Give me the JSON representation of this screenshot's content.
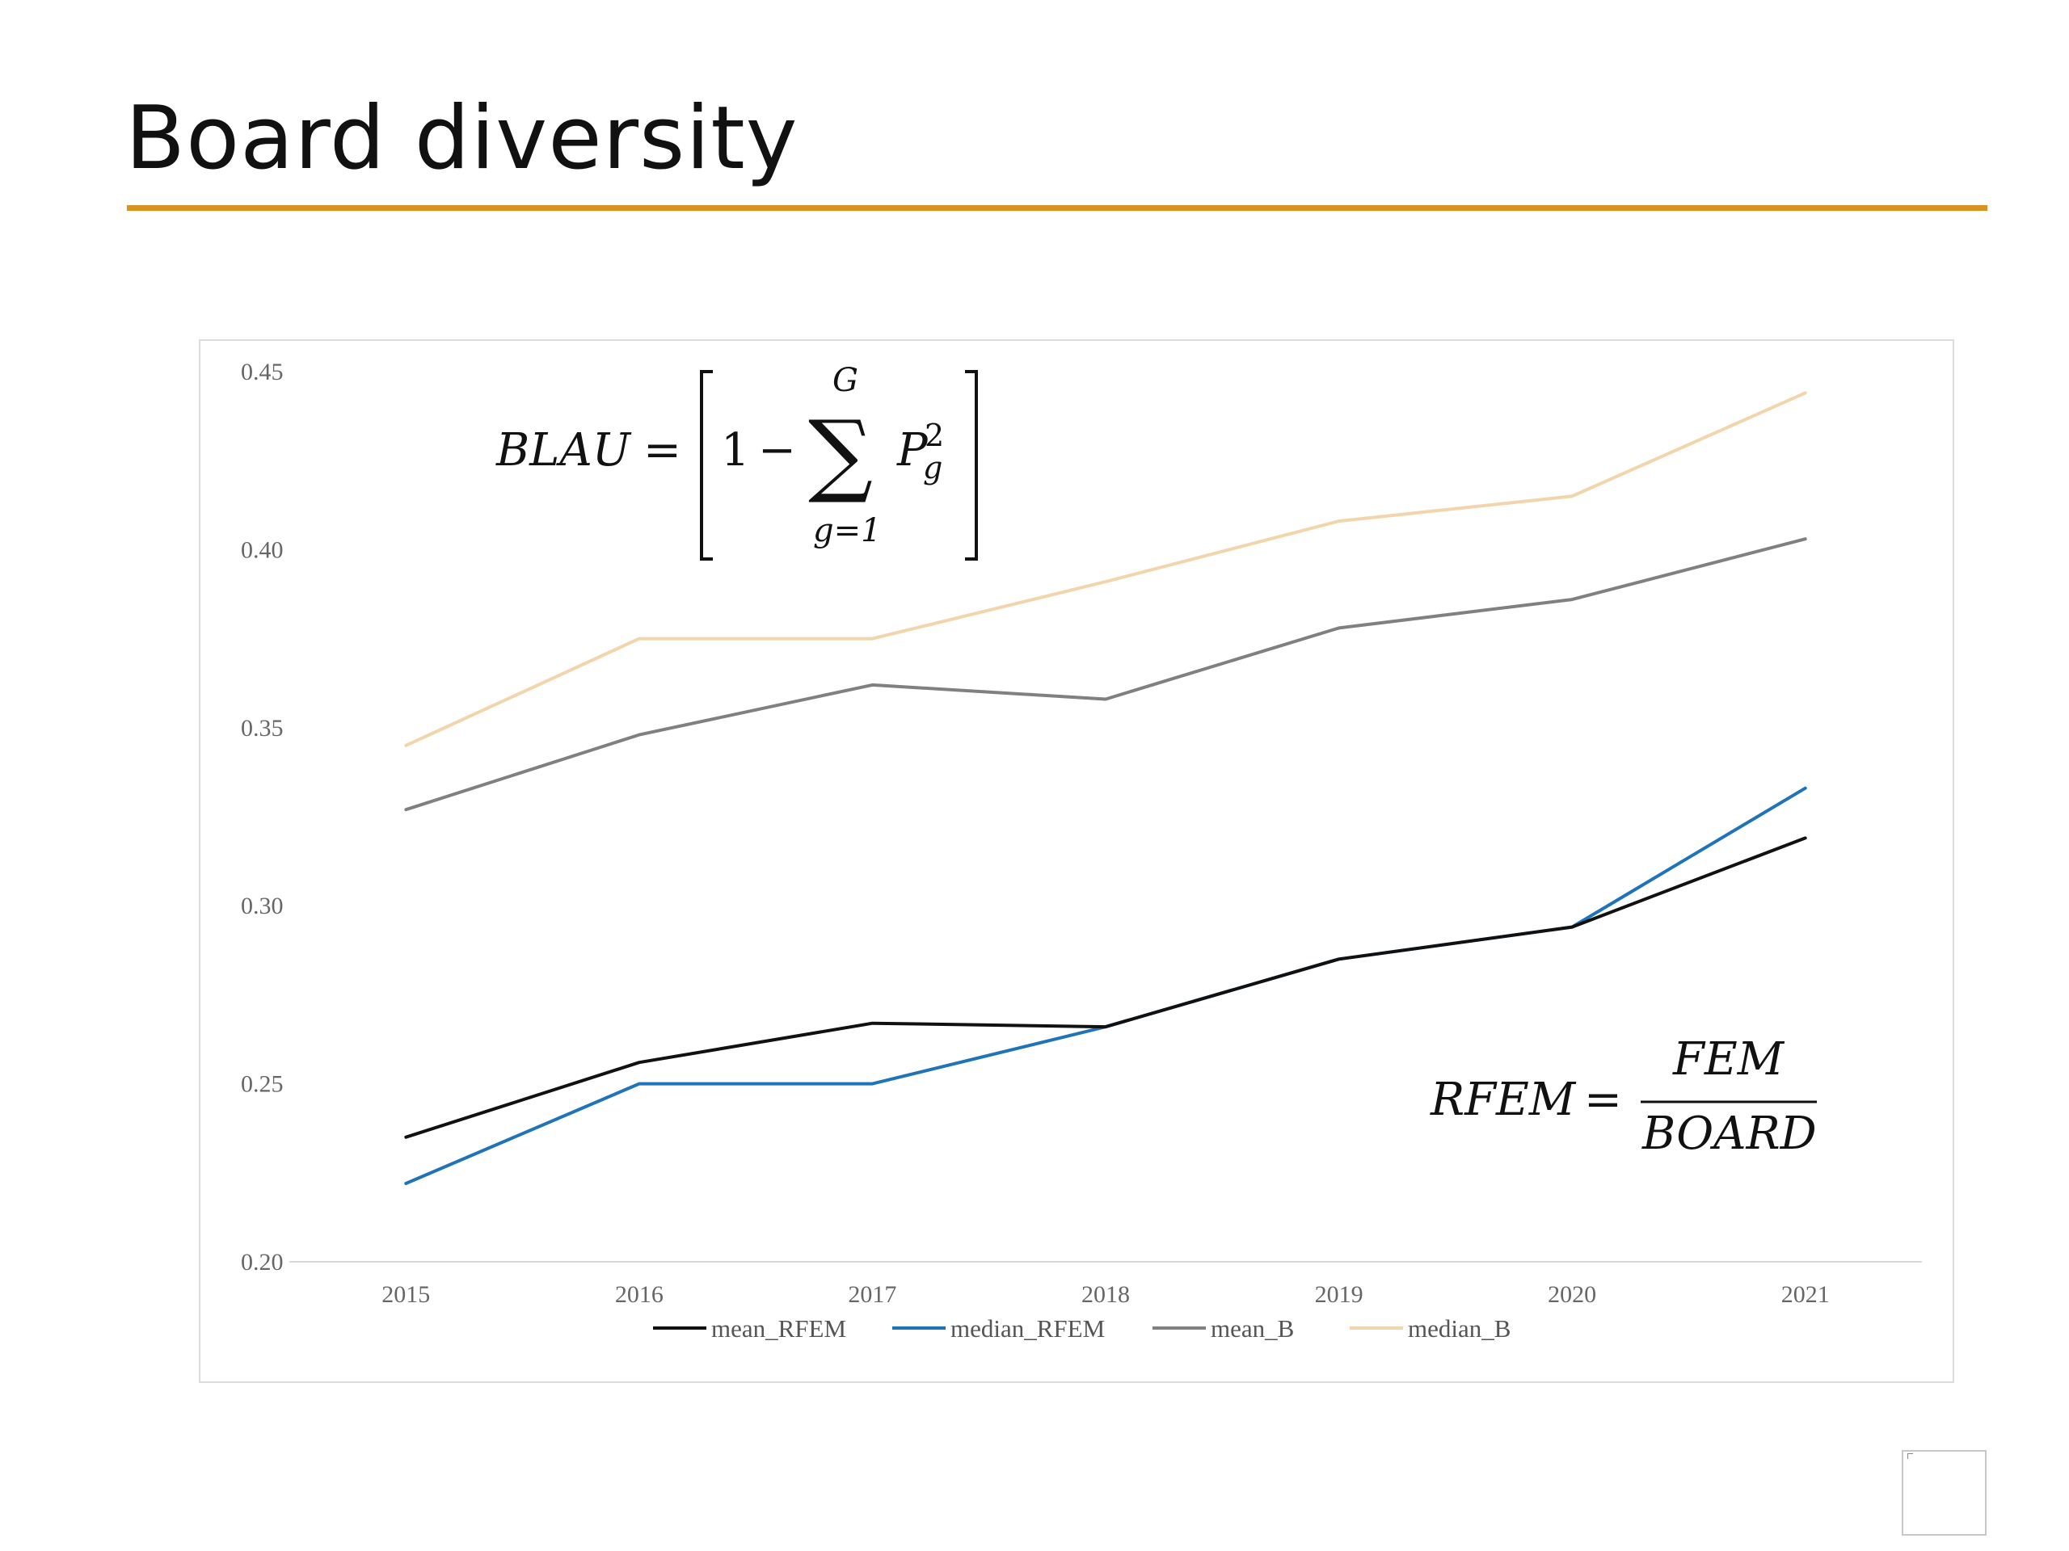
{
  "slide": {
    "title": "Board diversity"
  },
  "equations": {
    "blau": {
      "lhs": "BLAU",
      "equals": "=",
      "one": "1",
      "minus": "−",
      "sigma": "∑",
      "upper": "G",
      "lower": "g=1",
      "term": "P",
      "term_sub": "g",
      "term_sup": "2"
    },
    "rfem": {
      "lhs": "RFEM",
      "equals": "=",
      "numerator": "FEM",
      "denominator": "BOARD"
    }
  },
  "chart_data": {
    "type": "line",
    "title": "",
    "xlabel": "",
    "ylabel": "",
    "categories": [
      "2015",
      "2016",
      "2017",
      "2018",
      "2019",
      "2020",
      "2021"
    ],
    "yticks": [
      "0.20",
      "0.25",
      "0.30",
      "0.35",
      "0.40",
      "0.45"
    ],
    "ylim": [
      0.2,
      0.45
    ],
    "grid": false,
    "legend_position": "bottom",
    "series": [
      {
        "name": "mean_RFEM",
        "color": "#111111",
        "values": [
          0.235,
          0.256,
          0.267,
          0.266,
          0.285,
          0.294,
          0.319
        ]
      },
      {
        "name": "median_RFEM",
        "color": "#1f73b8",
        "values": [
          0.222,
          0.25,
          0.25,
          0.266,
          0.285,
          0.294,
          0.333
        ]
      },
      {
        "name": "mean_B",
        "color": "#808080",
        "values": [
          0.327,
          0.348,
          0.362,
          0.358,
          0.378,
          0.386,
          0.403
        ]
      },
      {
        "name": "median_B",
        "color": "#f2d5ab",
        "values": [
          0.345,
          0.375,
          0.375,
          0.391,
          0.408,
          0.415,
          0.444
        ]
      }
    ]
  }
}
